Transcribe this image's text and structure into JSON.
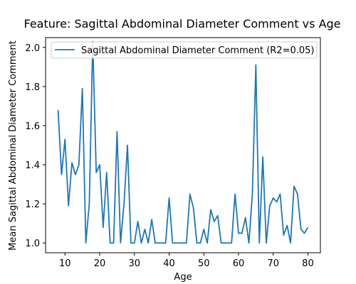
{
  "chart_data": {
    "type": "line",
    "title": "Feature: Sagittal Abdominal Diameter Comment vs Age",
    "xlabel": "Age",
    "ylabel": "Mean Sagittal Abdominal Diameter Comment",
    "xlim": [
      4.4,
      83.6
    ],
    "ylim": [
      0.95,
      2.05
    ],
    "xticks": [
      10,
      20,
      30,
      40,
      50,
      60,
      70,
      80
    ],
    "yticks": [
      1.0,
      1.2,
      1.4,
      1.6,
      1.8,
      2.0
    ],
    "ytick_labels": [
      "1.0",
      "1.2",
      "1.4",
      "1.6",
      "1.8",
      "2.0"
    ],
    "legend_position": "top-right",
    "grid": false,
    "series": [
      {
        "name": "Sagittal Abdominal Diameter Comment (R2=0.05)",
        "color": "#1f77b4",
        "x": [
          8,
          9,
          10,
          11,
          12,
          13,
          14,
          15,
          16,
          17,
          18,
          19,
          20,
          21,
          22,
          23,
          24,
          25,
          26,
          27,
          28,
          29,
          30,
          31,
          32,
          33,
          34,
          35,
          36,
          37,
          38,
          39,
          40,
          41,
          42,
          43,
          44,
          45,
          46,
          47,
          48,
          49,
          50,
          51,
          52,
          53,
          54,
          55,
          56,
          57,
          58,
          59,
          60,
          61,
          62,
          63,
          64,
          65,
          66,
          67,
          68,
          69,
          70,
          71,
          72,
          73,
          74,
          75,
          76,
          77,
          78,
          79,
          80
        ],
        "y": [
          1.68,
          1.35,
          1.53,
          1.19,
          1.41,
          1.35,
          1.4,
          1.79,
          1.0,
          1.2,
          2.03,
          1.36,
          1.4,
          1.08,
          1.36,
          1.0,
          1.0,
          1.57,
          1.0,
          1.2,
          1.5,
          1.0,
          1.0,
          1.11,
          1.0,
          1.07,
          1.0,
          1.12,
          1.0,
          1.0,
          1.0,
          1.0,
          1.23,
          1.0,
          1.0,
          1.0,
          1.0,
          1.0,
          1.25,
          1.18,
          1.0,
          1.0,
          1.07,
          1.0,
          1.17,
          1.11,
          1.14,
          1.0,
          1.0,
          1.0,
          1.0,
          1.25,
          1.05,
          1.05,
          1.13,
          1.0,
          1.25,
          1.91,
          1.0,
          1.44,
          1.0,
          1.19,
          1.23,
          1.21,
          1.25,
          1.04,
          1.09,
          1.0,
          1.29,
          1.25,
          1.07,
          1.05,
          1.08
        ]
      }
    ]
  }
}
